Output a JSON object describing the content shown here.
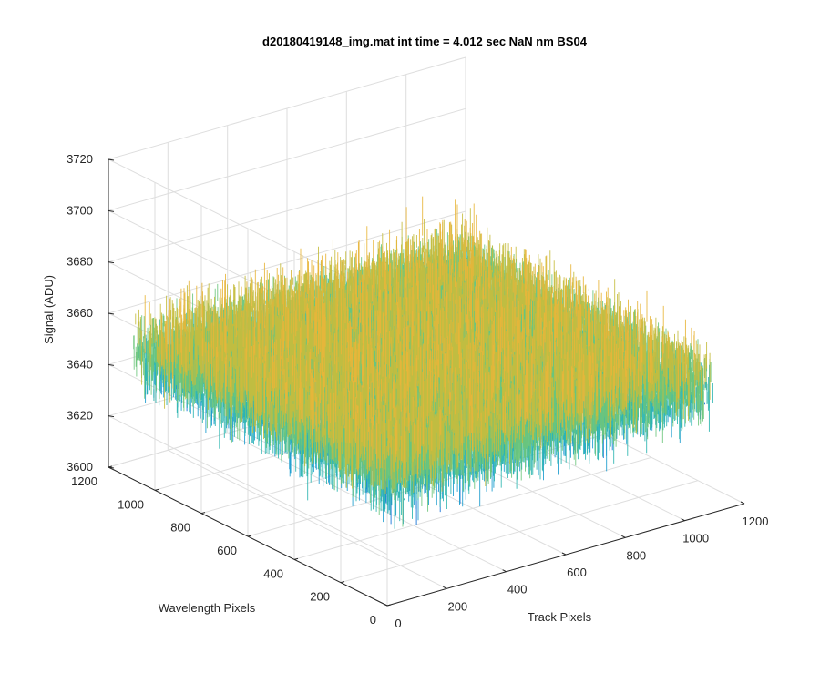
{
  "chart_data": {
    "type": "surface",
    "title": "d20180419148_img.mat int time = 4.012 sec  NaN nm BS04",
    "xlabel": "Track Pixels",
    "ylabel": "Wavelength Pixels",
    "zlabel": "Signal (ADU)",
    "xlim": [
      0,
      1200
    ],
    "ylim": [
      0,
      1200
    ],
    "zlim": [
      3600,
      3720
    ],
    "x_ticks": [
      "0",
      "200",
      "400",
      "600",
      "800",
      "1000",
      "1200"
    ],
    "y_ticks": [
      "0",
      "200",
      "400",
      "600",
      "800",
      "1000",
      "1200"
    ],
    "z_ticks": [
      "3600",
      "3620",
      "3640",
      "3660",
      "3680",
      "3700",
      "3720"
    ],
    "grid": true,
    "colormap": [
      "#0d6fd6",
      "#1a9ccf",
      "#2cb5b0",
      "#6cc57b",
      "#c5bd3e",
      "#e8b53a"
    ],
    "surface_extent": {
      "x": [
        0,
        1100
      ],
      "y": [
        0,
        1100
      ]
    },
    "signal_mean": 3650,
    "signal_range": [
      3605,
      3705
    ]
  }
}
